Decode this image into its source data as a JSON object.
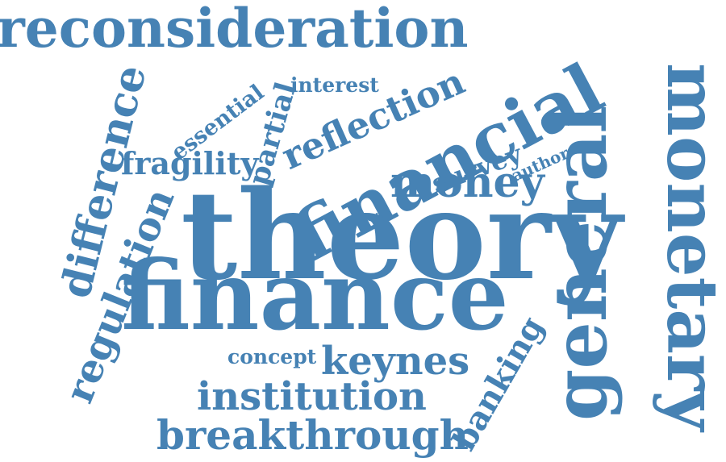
{
  "color": "#4682b4",
  "words": {
    "reconsideration": "reconsideration",
    "financial": "financial",
    "monetary": "monetary",
    "general": "general",
    "theory": "theory",
    "finance": "finance",
    "difference": "difference",
    "regulation": "regulation",
    "essential": "essential",
    "partial": "partial",
    "interest": "interest",
    "reflection": "reflection",
    "fragility": "fragility",
    "survey": "survey",
    "author": "author",
    "money": "money",
    "rate": "rate",
    "concept": "concept",
    "keynes": "keynes",
    "banking": "banking",
    "institution": "institution",
    "breakthrough": "breakthrough"
  }
}
